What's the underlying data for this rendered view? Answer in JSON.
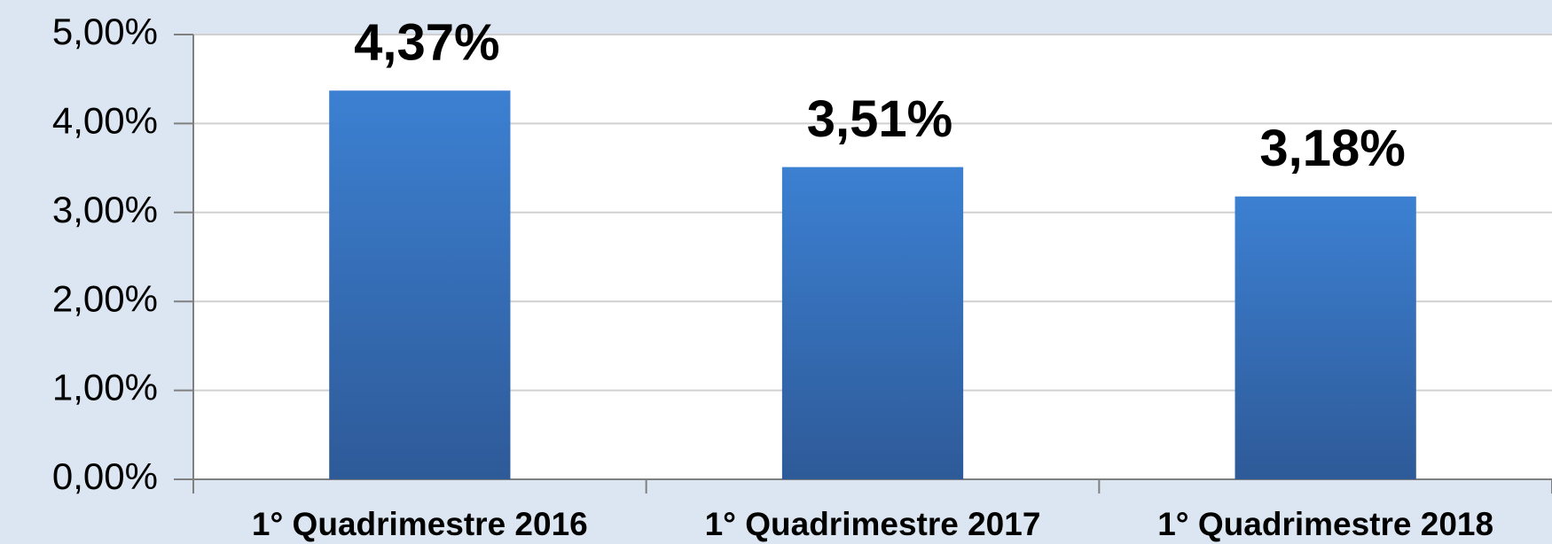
{
  "chart_data": {
    "type": "bar",
    "categories": [
      "1° Quadrimestre 2016",
      "1° Quadrimestre 2017",
      "1° Quadrimestre 2018"
    ],
    "values": [
      4.37,
      3.51,
      3.18
    ],
    "value_labels": [
      "4,37%",
      "3,51%",
      "3,18%"
    ],
    "color": "#3a78c6",
    "ylim": [
      0,
      5
    ],
    "yticks": [
      {
        "value": 0,
        "label": "0,00%"
      },
      {
        "value": 1,
        "label": "1,00%"
      },
      {
        "value": 2,
        "label": "2,00%"
      },
      {
        "value": 3,
        "label": "3,00%"
      },
      {
        "value": 4,
        "label": "4,00%"
      },
      {
        "value": 5,
        "label": "5,00%"
      }
    ],
    "grid": true
  }
}
